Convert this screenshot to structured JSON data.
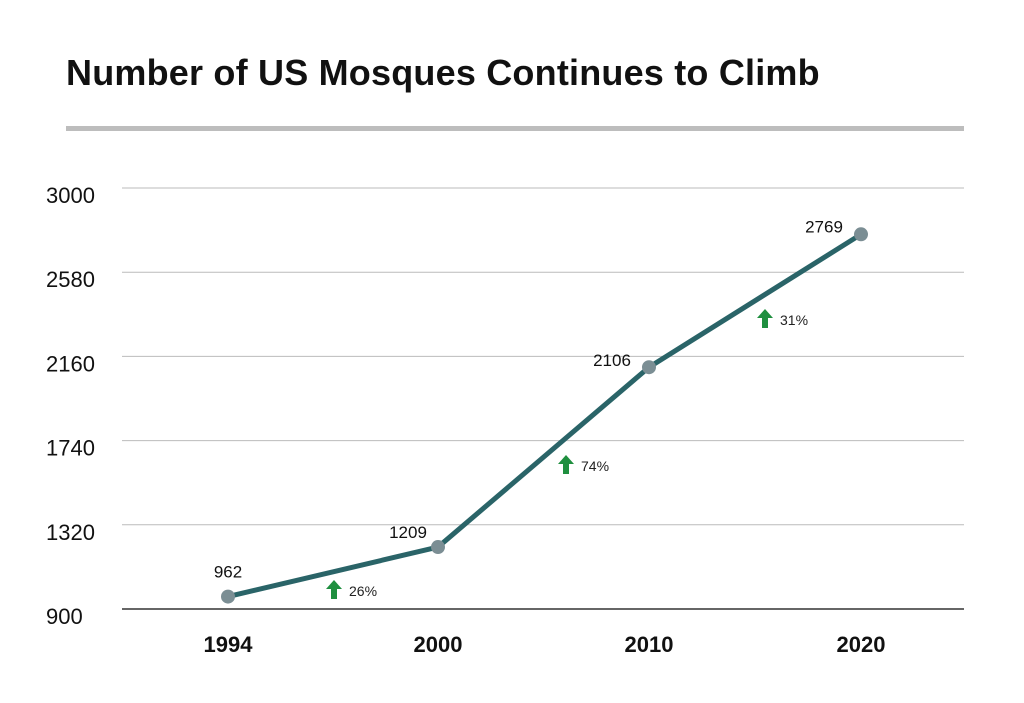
{
  "title": "Number of US Mosques Continues to Climb",
  "colors": {
    "line": "#2a6468",
    "marker": "#7b8e94",
    "arrow": "#1f8f3f",
    "grid": "#bbbbbb",
    "axis": "#333333",
    "rule": "#bdbdbd"
  },
  "chart_data": {
    "type": "line",
    "categories": [
      "1994",
      "2000",
      "2010",
      "2020"
    ],
    "series": [
      {
        "values": [
          962,
          1209,
          2106,
          2769
        ]
      }
    ],
    "data_labels": [
      "962",
      "1209",
      "2106",
      "2769"
    ],
    "y_ticks": [
      900,
      1320,
      1740,
      2160,
      2580,
      3000
    ],
    "ylim": [
      900,
      3000
    ],
    "grid": true,
    "changes": [
      {
        "label": "26%",
        "icon": "up-arrow-icon"
      },
      {
        "label": "74%",
        "icon": "up-arrow-icon"
      },
      {
        "label": "31%",
        "icon": "up-arrow-icon"
      }
    ]
  }
}
